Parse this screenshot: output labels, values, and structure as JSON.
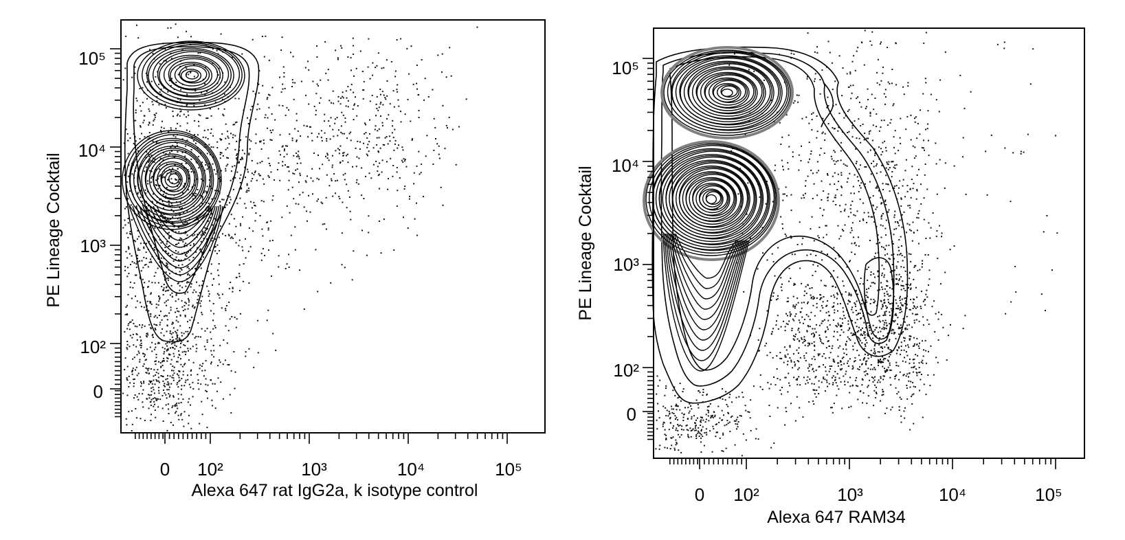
{
  "chart_data": [
    {
      "type": "contour",
      "panel": "left",
      "title": "",
      "xlabel": "Alexa 647 rat IgG2a, k isotype control",
      "ylabel": "PE Lineage Cocktail",
      "x_scale": "biexponential",
      "y_scale": "biexponential",
      "x_ticks": [
        {
          "value": 0,
          "label": "0"
        },
        {
          "value": 100,
          "label": "10²"
        },
        {
          "value": 1000,
          "label": "10³"
        },
        {
          "value": 10000,
          "label": "10⁴"
        },
        {
          "value": 100000,
          "label": "10⁵"
        }
      ],
      "y_ticks": [
        {
          "value": 0,
          "label": "0"
        },
        {
          "value": 100,
          "label": "10²"
        },
        {
          "value": 1000,
          "label": "10³"
        },
        {
          "value": 10000,
          "label": "10⁴"
        },
        {
          "value": 100000,
          "label": "10⁵"
        }
      ],
      "populations": [
        {
          "x": 40,
          "y": 60000
        },
        {
          "x": 10,
          "y": 4000
        }
      ],
      "outlier_region": {
        "x_max": 8000,
        "y_min": -50,
        "y_max": 200000
      }
    },
    {
      "type": "contour",
      "panel": "right",
      "title": "",
      "xlabel": "Alexa 647 RAM34",
      "ylabel": "PE Lineage Cocktail",
      "x_scale": "biexponential",
      "y_scale": "biexponential",
      "x_ticks": [
        {
          "value": 0,
          "label": "0"
        },
        {
          "value": 100,
          "label": "10²"
        },
        {
          "value": 1000,
          "label": "10³"
        },
        {
          "value": 10000,
          "label": "10⁴"
        },
        {
          "value": 100000,
          "label": "10⁵"
        }
      ],
      "y_ticks": [
        {
          "value": 0,
          "label": "0"
        },
        {
          "value": 100,
          "label": "10²"
        },
        {
          "value": 1000,
          "label": "10³"
        },
        {
          "value": 10000,
          "label": "10⁴"
        },
        {
          "value": 100000,
          "label": "10⁵"
        }
      ],
      "populations": [
        {
          "x": 40,
          "y": 60000
        },
        {
          "x": 10,
          "y": 4000
        },
        {
          "x": 2500,
          "y": 800
        }
      ],
      "outlier_region": {
        "x_max": 60000,
        "y_min": -50,
        "y_max": 200000
      }
    }
  ]
}
